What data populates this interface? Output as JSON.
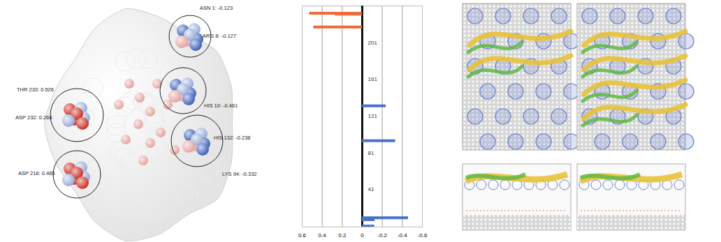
{
  "structure_labels": [
    "ASN 1: -0.123",
    "ARG 8: -0.127",
    "HIS 10: -0.461",
    "HIS 132: -0.238",
    "LYS 94: -0.332",
    "THR 233: 0.526",
    "ASP 232: 0.268",
    "ASP 218: 0.485"
  ],
  "chart_data": {
    "type": "bar",
    "orientation": "horizontal",
    "y": [
      1,
      8,
      10,
      94,
      132,
      218,
      232,
      233
    ],
    "values": [
      -0.123,
      -0.127,
      -0.461,
      -0.332,
      -0.238,
      0.485,
      0.268,
      0.526
    ],
    "colors": [
      "#4a72c8",
      "#4a72c8",
      "#4a72c8",
      "#4a72c8",
      "#4a72c8",
      "#ee6a3a",
      "#ee6a3a",
      "#ee6a3a"
    ],
    "xlim": [
      0.6,
      -0.6
    ],
    "xticks": [
      0.6,
      0.4,
      0.2,
      0,
      -0.2,
      -0.4,
      -0.6
    ],
    "ylim": [
      0,
      241
    ],
    "yticks": [
      41,
      81,
      121,
      161,
      201
    ],
    "grid": true
  }
}
